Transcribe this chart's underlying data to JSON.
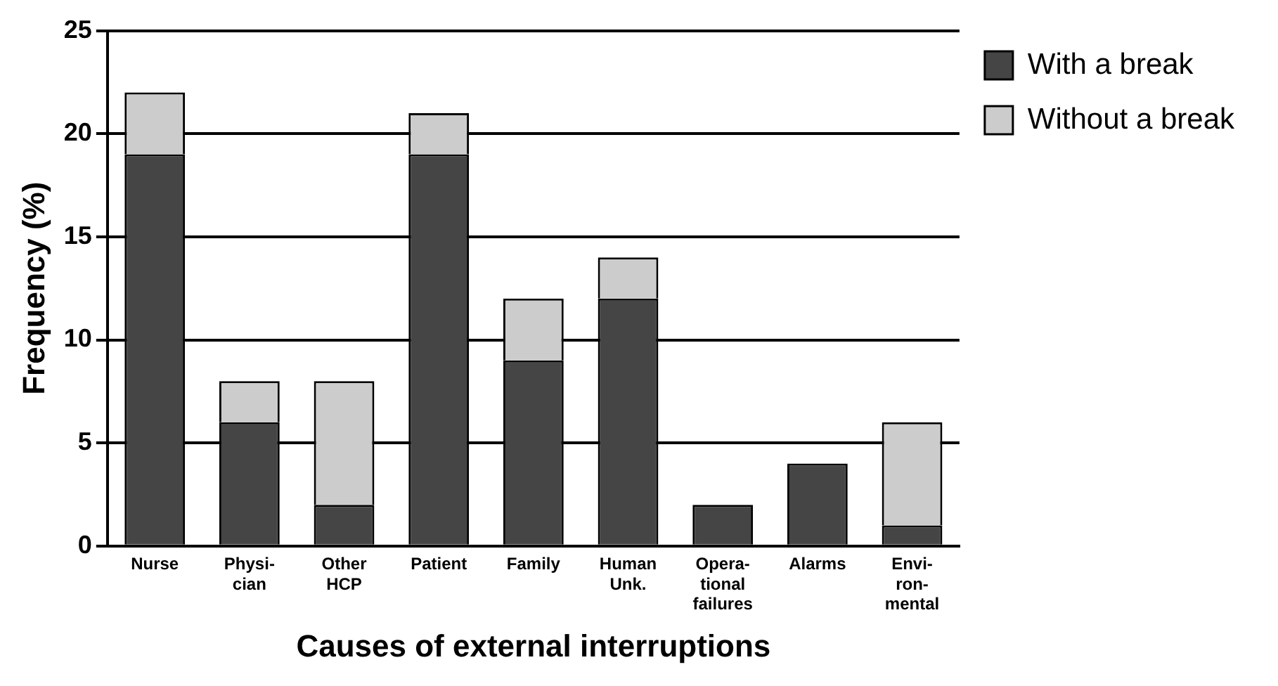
{
  "chart_data": {
    "type": "bar",
    "stacked": true,
    "xlabel": "Causes of external interruptions",
    "ylabel": "Frequency (%)",
    "categories": [
      "Nurse",
      "Physi-\ncian",
      "Other\nHCP",
      "Patient",
      "Family",
      "Human\nUnk.",
      "Opera-\ntional\nfailures",
      "Alarms",
      "Envi-\nron-\nmental"
    ],
    "series": [
      {
        "name": "With a break",
        "color": "#454545",
        "values": [
          19,
          6,
          2,
          19,
          9,
          12,
          2,
          4,
          1
        ]
      },
      {
        "name": "Without a break",
        "color": "#cccccc",
        "values": [
          3,
          2,
          6,
          2,
          3,
          2,
          0,
          0,
          5
        ]
      }
    ],
    "ylim": [
      0,
      25
    ],
    "yticks": [
      0,
      5,
      10,
      15,
      20,
      25
    ],
    "grid": "y",
    "legend": "top right"
  }
}
